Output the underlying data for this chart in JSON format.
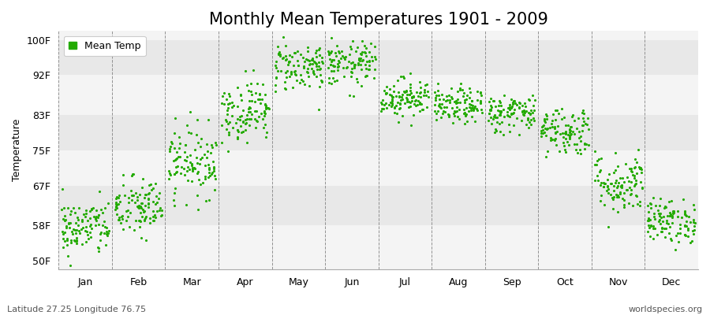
{
  "title": "Monthly Mean Temperatures 1901 - 2009",
  "ylabel": "Temperature",
  "yticks": [
    50,
    58,
    67,
    75,
    83,
    92,
    100
  ],
  "ytick_labels": [
    "50F",
    "58F",
    "67F",
    "75F",
    "83F",
    "92F",
    "100F"
  ],
  "ylim": [
    48,
    102
  ],
  "months": [
    "Jan",
    "Feb",
    "Mar",
    "Apr",
    "May",
    "Jun",
    "Jul",
    "Aug",
    "Sep",
    "Oct",
    "Nov",
    "Dec"
  ],
  "month_centers": [
    0.5,
    1.5,
    2.5,
    3.5,
    4.5,
    5.5,
    6.5,
    7.5,
    8.5,
    9.5,
    10.5,
    11.5
  ],
  "dot_color": "#22aa00",
  "bg_color": "#f4f4f4",
  "stripe_light": "#f4f4f4",
  "stripe_dark": "#e8e8e8",
  "title_fontsize": 15,
  "label_fontsize": 9,
  "footer_left": "Latitude 27.25 Longitude 76.75",
  "footer_right": "worldspecies.org",
  "legend_label": "Mean Temp",
  "monthly_mean": [
    57.5,
    62.0,
    72.5,
    84.0,
    94.0,
    94.5,
    87.0,
    85.0,
    83.5,
    79.5,
    67.5,
    59.0
  ],
  "monthly_std": [
    3.2,
    3.5,
    4.0,
    3.5,
    2.8,
    2.5,
    2.2,
    2.0,
    2.2,
    2.8,
    3.5,
    2.5
  ],
  "n_years": 109,
  "seed": 42
}
